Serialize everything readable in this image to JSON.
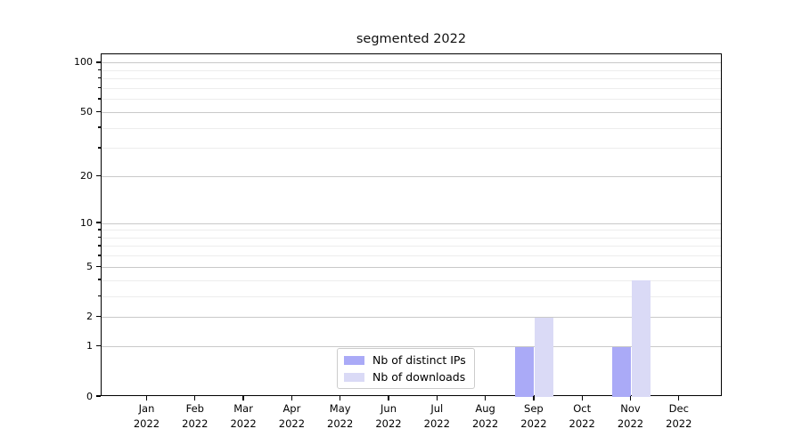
{
  "chart_data": {
    "type": "bar",
    "title": "segmented 2022",
    "x": {
      "months": [
        "Jan",
        "Feb",
        "Mar",
        "Apr",
        "May",
        "Jun",
        "Jul",
        "Aug",
        "Sep",
        "Oct",
        "Nov",
        "Dec"
      ],
      "year": "2022"
    },
    "series": [
      {
        "name": "Nb of distinct IPs",
        "color": "#aaaaf7",
        "values": [
          0,
          0,
          0,
          0,
          0,
          0,
          0,
          0,
          1,
          0,
          1,
          0
        ]
      },
      {
        "name": "Nb of downloads",
        "color": "#dadaf6",
        "values": [
          0,
          0,
          0,
          0,
          0,
          0,
          0,
          0,
          2,
          0,
          4,
          0
        ]
      }
    ],
    "yscale": "log1p",
    "ylim": [
      0,
      113
    ],
    "yticks_major": [
      0,
      1,
      2,
      5,
      10,
      20,
      50,
      100
    ],
    "yticks_minor": [
      3,
      4,
      6,
      7,
      8,
      9,
      30,
      40,
      60,
      70,
      80,
      90
    ],
    "grid": "horizontal",
    "legend_position": "lower center",
    "colors": {
      "grid_major": "#c9c9c9",
      "grid_minor": "#ededed",
      "axis": "#000000",
      "text": "#000000"
    }
  }
}
